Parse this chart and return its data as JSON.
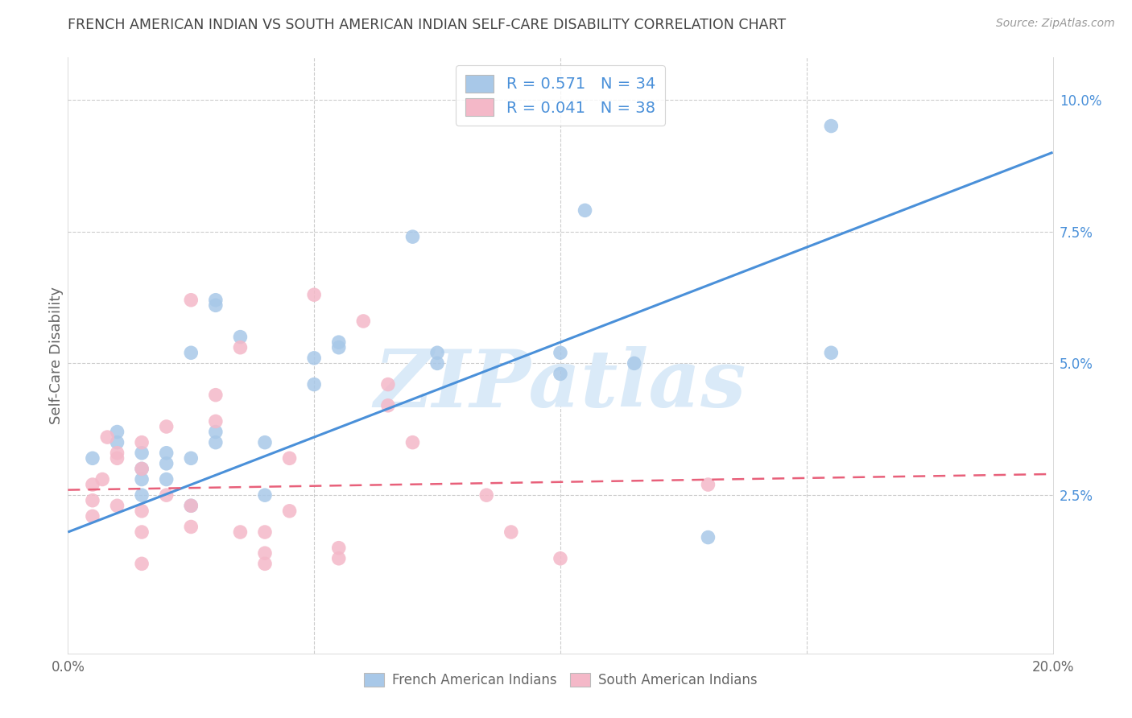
{
  "title": "FRENCH AMERICAN INDIAN VS SOUTH AMERICAN INDIAN SELF-CARE DISABILITY CORRELATION CHART",
  "source": "Source: ZipAtlas.com",
  "ylabel": "Self-Care Disability",
  "xlim": [
    0.0,
    0.2
  ],
  "ylim": [
    -0.005,
    0.108
  ],
  "yticks": [
    0.025,
    0.05,
    0.075,
    0.1
  ],
  "ytick_labels": [
    "2.5%",
    "5.0%",
    "7.5%",
    "10.0%"
  ],
  "xticks": [
    0.0,
    0.05,
    0.1,
    0.15,
    0.2
  ],
  "xtick_labels": [
    "0.0%",
    "",
    "",
    "",
    "20.0%"
  ],
  "blue_color": "#a8c8e8",
  "pink_color": "#f4b8c8",
  "blue_line_color": "#4a90d9",
  "pink_line_color": "#e8607a",
  "tick_color": "#4a90d9",
  "watermark_color": "#daeaf8",
  "watermark": "ZIPatlas",
  "legend_label1": "French American Indians",
  "legend_label2": "South American Indians",
  "R_blue": 0.571,
  "N_blue": 34,
  "R_pink": 0.041,
  "N_pink": 38,
  "blue_scatter_x": [
    0.005,
    0.01,
    0.01,
    0.015,
    0.015,
    0.015,
    0.015,
    0.02,
    0.02,
    0.02,
    0.025,
    0.025,
    0.025,
    0.03,
    0.03,
    0.03,
    0.03,
    0.035,
    0.04,
    0.04,
    0.05,
    0.05,
    0.055,
    0.055,
    0.07,
    0.075,
    0.075,
    0.1,
    0.1,
    0.105,
    0.115,
    0.13,
    0.155,
    0.155
  ],
  "blue_scatter_y": [
    0.032,
    0.037,
    0.035,
    0.033,
    0.03,
    0.028,
    0.025,
    0.033,
    0.031,
    0.028,
    0.052,
    0.032,
    0.023,
    0.062,
    0.061,
    0.037,
    0.035,
    0.055,
    0.035,
    0.025,
    0.051,
    0.046,
    0.054,
    0.053,
    0.074,
    0.052,
    0.05,
    0.052,
    0.048,
    0.079,
    0.05,
    0.017,
    0.052,
    0.095
  ],
  "pink_scatter_x": [
    0.005,
    0.005,
    0.005,
    0.007,
    0.008,
    0.01,
    0.01,
    0.01,
    0.015,
    0.015,
    0.015,
    0.015,
    0.015,
    0.02,
    0.02,
    0.025,
    0.025,
    0.025,
    0.03,
    0.03,
    0.035,
    0.035,
    0.04,
    0.04,
    0.04,
    0.045,
    0.045,
    0.05,
    0.055,
    0.055,
    0.06,
    0.065,
    0.065,
    0.07,
    0.085,
    0.09,
    0.1,
    0.13
  ],
  "pink_scatter_y": [
    0.027,
    0.024,
    0.021,
    0.028,
    0.036,
    0.033,
    0.032,
    0.023,
    0.035,
    0.03,
    0.022,
    0.018,
    0.012,
    0.038,
    0.025,
    0.062,
    0.023,
    0.019,
    0.044,
    0.039,
    0.053,
    0.018,
    0.018,
    0.014,
    0.012,
    0.032,
    0.022,
    0.063,
    0.015,
    0.013,
    0.058,
    0.046,
    0.042,
    0.035,
    0.025,
    0.018,
    0.013,
    0.027
  ],
  "blue_trend_x": [
    0.0,
    0.2
  ],
  "blue_trend_y": [
    0.018,
    0.09
  ],
  "pink_trend_x": [
    0.0,
    0.2
  ],
  "pink_trend_y": [
    0.026,
    0.029
  ],
  "background_color": "#ffffff",
  "grid_color": "#cccccc",
  "title_color": "#444444",
  "axis_label_color": "#666666"
}
